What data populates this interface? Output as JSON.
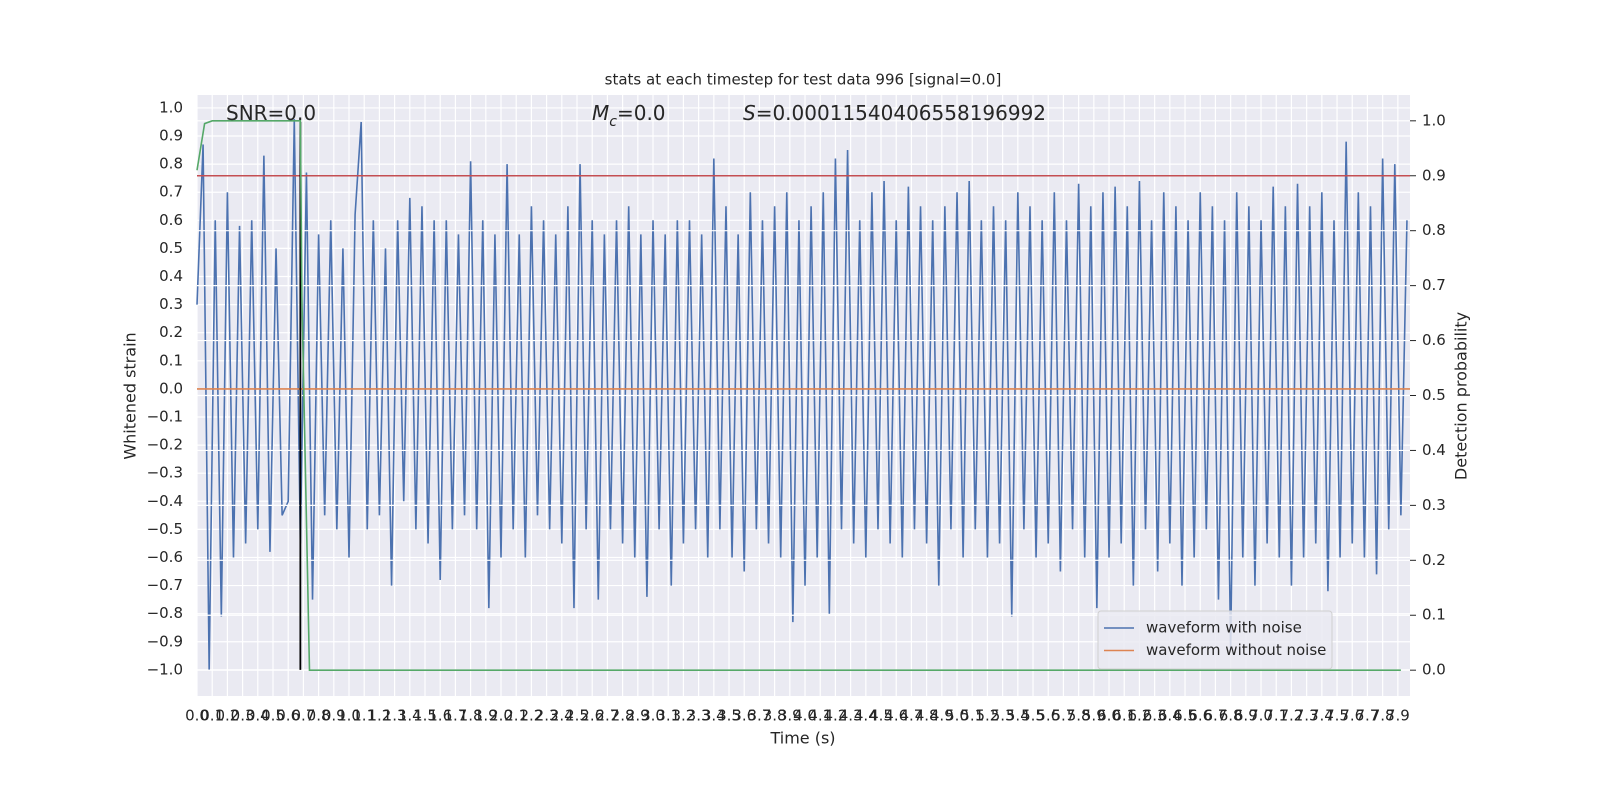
{
  "chart_data": {
    "type": "line",
    "title": "stats at each timestep for test data 996 [signal=0.0]",
    "xlabel": "Time (s)",
    "ylabel": "Whitened strain",
    "y2label": "Detection probability",
    "annotations": [
      {
        "text": "SNR=0.0"
      },
      {
        "symbol": "M",
        "subscript": "c",
        "text": "=0.0"
      },
      {
        "symbol": "S",
        "text": "=0.00011540406558196992"
      }
    ],
    "xlim": [
      0,
      7.98
    ],
    "ylim": [
      -1.093,
      1.046
    ],
    "y2lim": [
      -0.047,
      1.047
    ],
    "xticks": [
      {
        "value": 0,
        "label": "0.0"
      },
      0.1,
      0.2,
      0.3,
      0.4,
      0.5,
      0.6,
      0.7,
      0.8,
      0.9,
      {
        "value": 1,
        "label": "1.0"
      },
      1.1,
      1.2,
      1.3,
      1.4,
      1.5,
      1.6,
      1.7,
      1.8,
      1.9,
      {
        "value": 2,
        "label": "2.0"
      },
      2.1,
      2.2,
      2.3,
      2.4,
      2.5,
      2.6,
      2.7,
      2.8,
      2.9,
      {
        "value": 3,
        "label": "3.0"
      },
      3.1,
      3.2,
      3.3,
      3.4,
      3.5,
      3.6,
      3.7,
      3.8,
      3.9,
      {
        "value": 4,
        "label": "4.0"
      },
      4.1,
      4.2,
      4.3,
      4.4,
      4.5,
      4.6,
      4.7,
      4.8,
      4.9,
      {
        "value": 5,
        "label": "5.0"
      },
      5.1,
      5.2,
      5.3,
      5.4,
      5.5,
      5.6,
      5.7,
      5.8,
      5.9,
      {
        "value": 6,
        "label": "6.0"
      },
      6.1,
      6.2,
      6.3,
      6.4,
      6.5,
      6.6,
      6.7,
      6.8,
      6.9,
      {
        "value": 7,
        "label": "7.0"
      },
      7.1,
      7.2,
      7.3,
      7.4,
      7.5,
      7.6,
      7.7,
      7.8,
      7.9
    ],
    "yticks": [
      {
        "value": -1,
        "label": "−1.0"
      },
      {
        "value": -0.9,
        "label": "−0.9"
      },
      {
        "value": -0.8,
        "label": "−0.8"
      },
      {
        "value": -0.7,
        "label": "−0.7"
      },
      {
        "value": -0.6,
        "label": "−0.6"
      },
      {
        "value": -0.5,
        "label": "−0.5"
      },
      {
        "value": -0.4,
        "label": "−0.4"
      },
      {
        "value": -0.3,
        "label": "−0.3"
      },
      {
        "value": -0.2,
        "label": "−0.2"
      },
      {
        "value": -0.1,
        "label": "−0.1"
      },
      {
        "value": 0,
        "label": "0.0"
      },
      0.1,
      0.2,
      0.3,
      0.4,
      0.5,
      0.6,
      0.7,
      0.8,
      0.9,
      {
        "value": 1,
        "label": "1.0"
      }
    ],
    "y2ticks": [
      {
        "value": 0,
        "label": "0.0"
      },
      0.1,
      0.2,
      0.3,
      0.4,
      0.5,
      0.6,
      0.7,
      0.8,
      0.9,
      {
        "value": 1,
        "label": "1.0"
      }
    ],
    "grid": true,
    "y2grid": true,
    "legend": "lower right",
    "series": [
      {
        "name": "waveform with noise",
        "color": "#4c72b0",
        "x": [
          0,
          0.04,
          0.08,
          0.12,
          0.16,
          0.2,
          0.24,
          0.28,
          0.32,
          0.36,
          0.4,
          0.44,
          0.48,
          0.52,
          0.56,
          0.6,
          0.64,
          0.68,
          0.72,
          0.76,
          0.8,
          0.84,
          0.88,
          0.92,
          0.96,
          1,
          1.04,
          1.08,
          1.12,
          1.16,
          1.2,
          1.24,
          1.28,
          1.32,
          1.36,
          1.4,
          1.44,
          1.48,
          1.52,
          1.56,
          1.6,
          1.64,
          1.68,
          1.72,
          1.76,
          1.8,
          1.84,
          1.88,
          1.92,
          1.96,
          2,
          2.04,
          2.08,
          2.12,
          2.16,
          2.2,
          2.24,
          2.28,
          2.32,
          2.36,
          2.4,
          2.44,
          2.48,
          2.52,
          2.56,
          2.6,
          2.64,
          2.68,
          2.72,
          2.76,
          2.8,
          2.84,
          2.88,
          2.92,
          2.96,
          3,
          3.04,
          3.08,
          3.12,
          3.16,
          3.2,
          3.24,
          3.28,
          3.32,
          3.36,
          3.4,
          3.44,
          3.48,
          3.52,
          3.56,
          3.6,
          3.64,
          3.68,
          3.72,
          3.76,
          3.8,
          3.84,
          3.88,
          3.92,
          3.96,
          4,
          4.04,
          4.08,
          4.12,
          4.16,
          4.2,
          4.24,
          4.28,
          4.32,
          4.36,
          4.4,
          4.44,
          4.48,
          4.52,
          4.56,
          4.6,
          4.64,
          4.68,
          4.72,
          4.76,
          4.8,
          4.84,
          4.88,
          4.92,
          4.96,
          5,
          5.04,
          5.08,
          5.12,
          5.16,
          5.2,
          5.24,
          5.28,
          5.32,
          5.36,
          5.4,
          5.44,
          5.48,
          5.52,
          5.56,
          5.6,
          5.64,
          5.68,
          5.72,
          5.76,
          5.8,
          5.84,
          5.88,
          5.92,
          5.96,
          6,
          6.04,
          6.08,
          6.12,
          6.16,
          6.2,
          6.24,
          6.28,
          6.32,
          6.36,
          6.4,
          6.44,
          6.48,
          6.52,
          6.56,
          6.6,
          6.64,
          6.68,
          6.72,
          6.76,
          6.8,
          6.84,
          6.88,
          6.92,
          6.96,
          7,
          7.04,
          7.08,
          7.12,
          7.16,
          7.2,
          7.24,
          7.28,
          7.32,
          7.36,
          7.4,
          7.44,
          7.48,
          7.52,
          7.56,
          7.6,
          7.64,
          7.68,
          7.72,
          7.76,
          7.8,
          7.84,
          7.88,
          7.92,
          7.96
        ],
        "values": [
          0.3,
          0.87,
          -1.0,
          0.6,
          -0.81,
          0.7,
          -0.6,
          0.58,
          -0.55,
          0.6,
          -0.5,
          0.83,
          -0.58,
          0.5,
          -0.45,
          -0.4,
          0.96,
          -0.55,
          0.77,
          -0.75,
          0.55,
          -0.45,
          0.6,
          -0.5,
          0.5,
          -0.6,
          0.62,
          0.95,
          -0.5,
          0.6,
          -0.45,
          0.5,
          -0.7,
          0.6,
          -0.4,
          0.68,
          -0.5,
          0.65,
          -0.55,
          0.6,
          -0.68,
          0.6,
          -0.5,
          0.55,
          -0.45,
          0.81,
          -0.5,
          0.6,
          -0.78,
          0.55,
          -0.6,
          0.8,
          -0.5,
          0.55,
          -0.6,
          0.65,
          -0.45,
          0.6,
          -0.5,
          0.55,
          -0.55,
          0.65,
          -0.78,
          0.8,
          -0.5,
          0.6,
          -0.75,
          0.55,
          -0.5,
          0.6,
          -0.55,
          0.65,
          -0.6,
          0.55,
          -0.74,
          0.6,
          -0.5,
          0.55,
          -0.7,
          0.6,
          -0.55,
          0.6,
          -0.5,
          0.55,
          -0.6,
          0.82,
          -0.5,
          0.65,
          -0.6,
          0.55,
          -0.65,
          0.7,
          -0.5,
          0.6,
          -0.55,
          0.65,
          -0.6,
          0.7,
          -0.83,
          0.6,
          -0.7,
          0.65,
          -0.6,
          0.7,
          -0.8,
          0.82,
          -0.5,
          0.85,
          -0.55,
          0.6,
          -0.6,
          0.7,
          -0.5,
          0.74,
          -0.55,
          0.6,
          -0.6,
          0.72,
          -0.5,
          0.65,
          -0.55,
          0.6,
          -0.7,
          0.65,
          -0.5,
          0.7,
          -0.6,
          0.74,
          -0.5,
          0.6,
          -0.6,
          0.65,
          -0.55,
          0.6,
          -0.81,
          0.7,
          -0.5,
          0.65,
          -0.6,
          0.6,
          -0.55,
          0.7,
          -0.65,
          0.6,
          -0.5,
          0.73,
          -0.6,
          0.65,
          -0.78,
          0.7,
          -0.6,
          0.72,
          -0.55,
          0.65,
          -0.7,
          0.74,
          -0.5,
          0.6,
          -0.65,
          0.7,
          -0.55,
          0.65,
          -0.7,
          0.6,
          -0.6,
          0.7,
          -0.5,
          0.65,
          -0.75,
          0.6,
          -0.93,
          0.7,
          -0.6,
          0.65,
          -0.7,
          0.6,
          -0.55,
          0.72,
          -0.6,
          0.65,
          -0.7,
          0.73,
          -0.6,
          0.65,
          -0.55,
          0.7,
          -0.72,
          0.6,
          -0.6,
          0.88,
          -0.55,
          0.7,
          -0.6,
          0.65,
          -0.66,
          0.82,
          -0.5,
          0.8,
          -0.45,
          0.6
        ]
      },
      {
        "name": "waveform without noise",
        "color": "#dd8452",
        "x": [
          0,
          7.98
        ],
        "values": [
          0,
          0
        ]
      },
      {
        "color": "#55a868",
        "axis": "y2",
        "x": [
          0,
          0.05,
          0.1,
          0.68,
          0.69,
          0.74,
          7.92
        ],
        "values": [
          0.91,
          0.995,
          1.0,
          1.0,
          0.68,
          0.0,
          0.0
        ]
      }
    ],
    "hlines_y2": [
      {
        "y": 0.9,
        "color": "#c44e52"
      }
    ],
    "vlines": [
      {
        "x": 0.68,
        "ymin": -1.0,
        "ymax": 0.95,
        "color": "#000000"
      }
    ]
  }
}
